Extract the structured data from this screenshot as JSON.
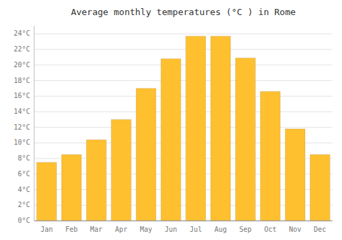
{
  "chart_data": {
    "type": "bar",
    "title": "Average monthly temperatures (°C ) in Rome",
    "categories": [
      "Jan",
      "Feb",
      "Mar",
      "Apr",
      "May",
      "Jun",
      "Jul",
      "Aug",
      "Sep",
      "Oct",
      "Nov",
      "Dec"
    ],
    "values": [
      7.5,
      8.5,
      10.4,
      13.0,
      17.0,
      20.8,
      23.7,
      23.7,
      20.9,
      16.6,
      11.8,
      8.5
    ],
    "color": "#FFC030",
    "ylim": [
      0,
      25
    ],
    "yticks": [
      {
        "value": 0,
        "label": "0°C"
      },
      {
        "value": 2,
        "label": "2°C"
      },
      {
        "value": 4,
        "label": "4°C"
      },
      {
        "value": 6,
        "label": "6°C"
      },
      {
        "value": 8,
        "label": "8°C"
      },
      {
        "value": 10,
        "label": "10°C"
      },
      {
        "value": 12,
        "label": "12°C"
      },
      {
        "value": 14,
        "label": "14°C"
      },
      {
        "value": 16,
        "label": "16°C"
      },
      {
        "value": 18,
        "label": "18°C"
      },
      {
        "value": 20,
        "label": "20°C"
      },
      {
        "value": 22,
        "label": "22°C"
      },
      {
        "value": 24,
        "label": "24°C"
      }
    ],
    "grid": true
  }
}
